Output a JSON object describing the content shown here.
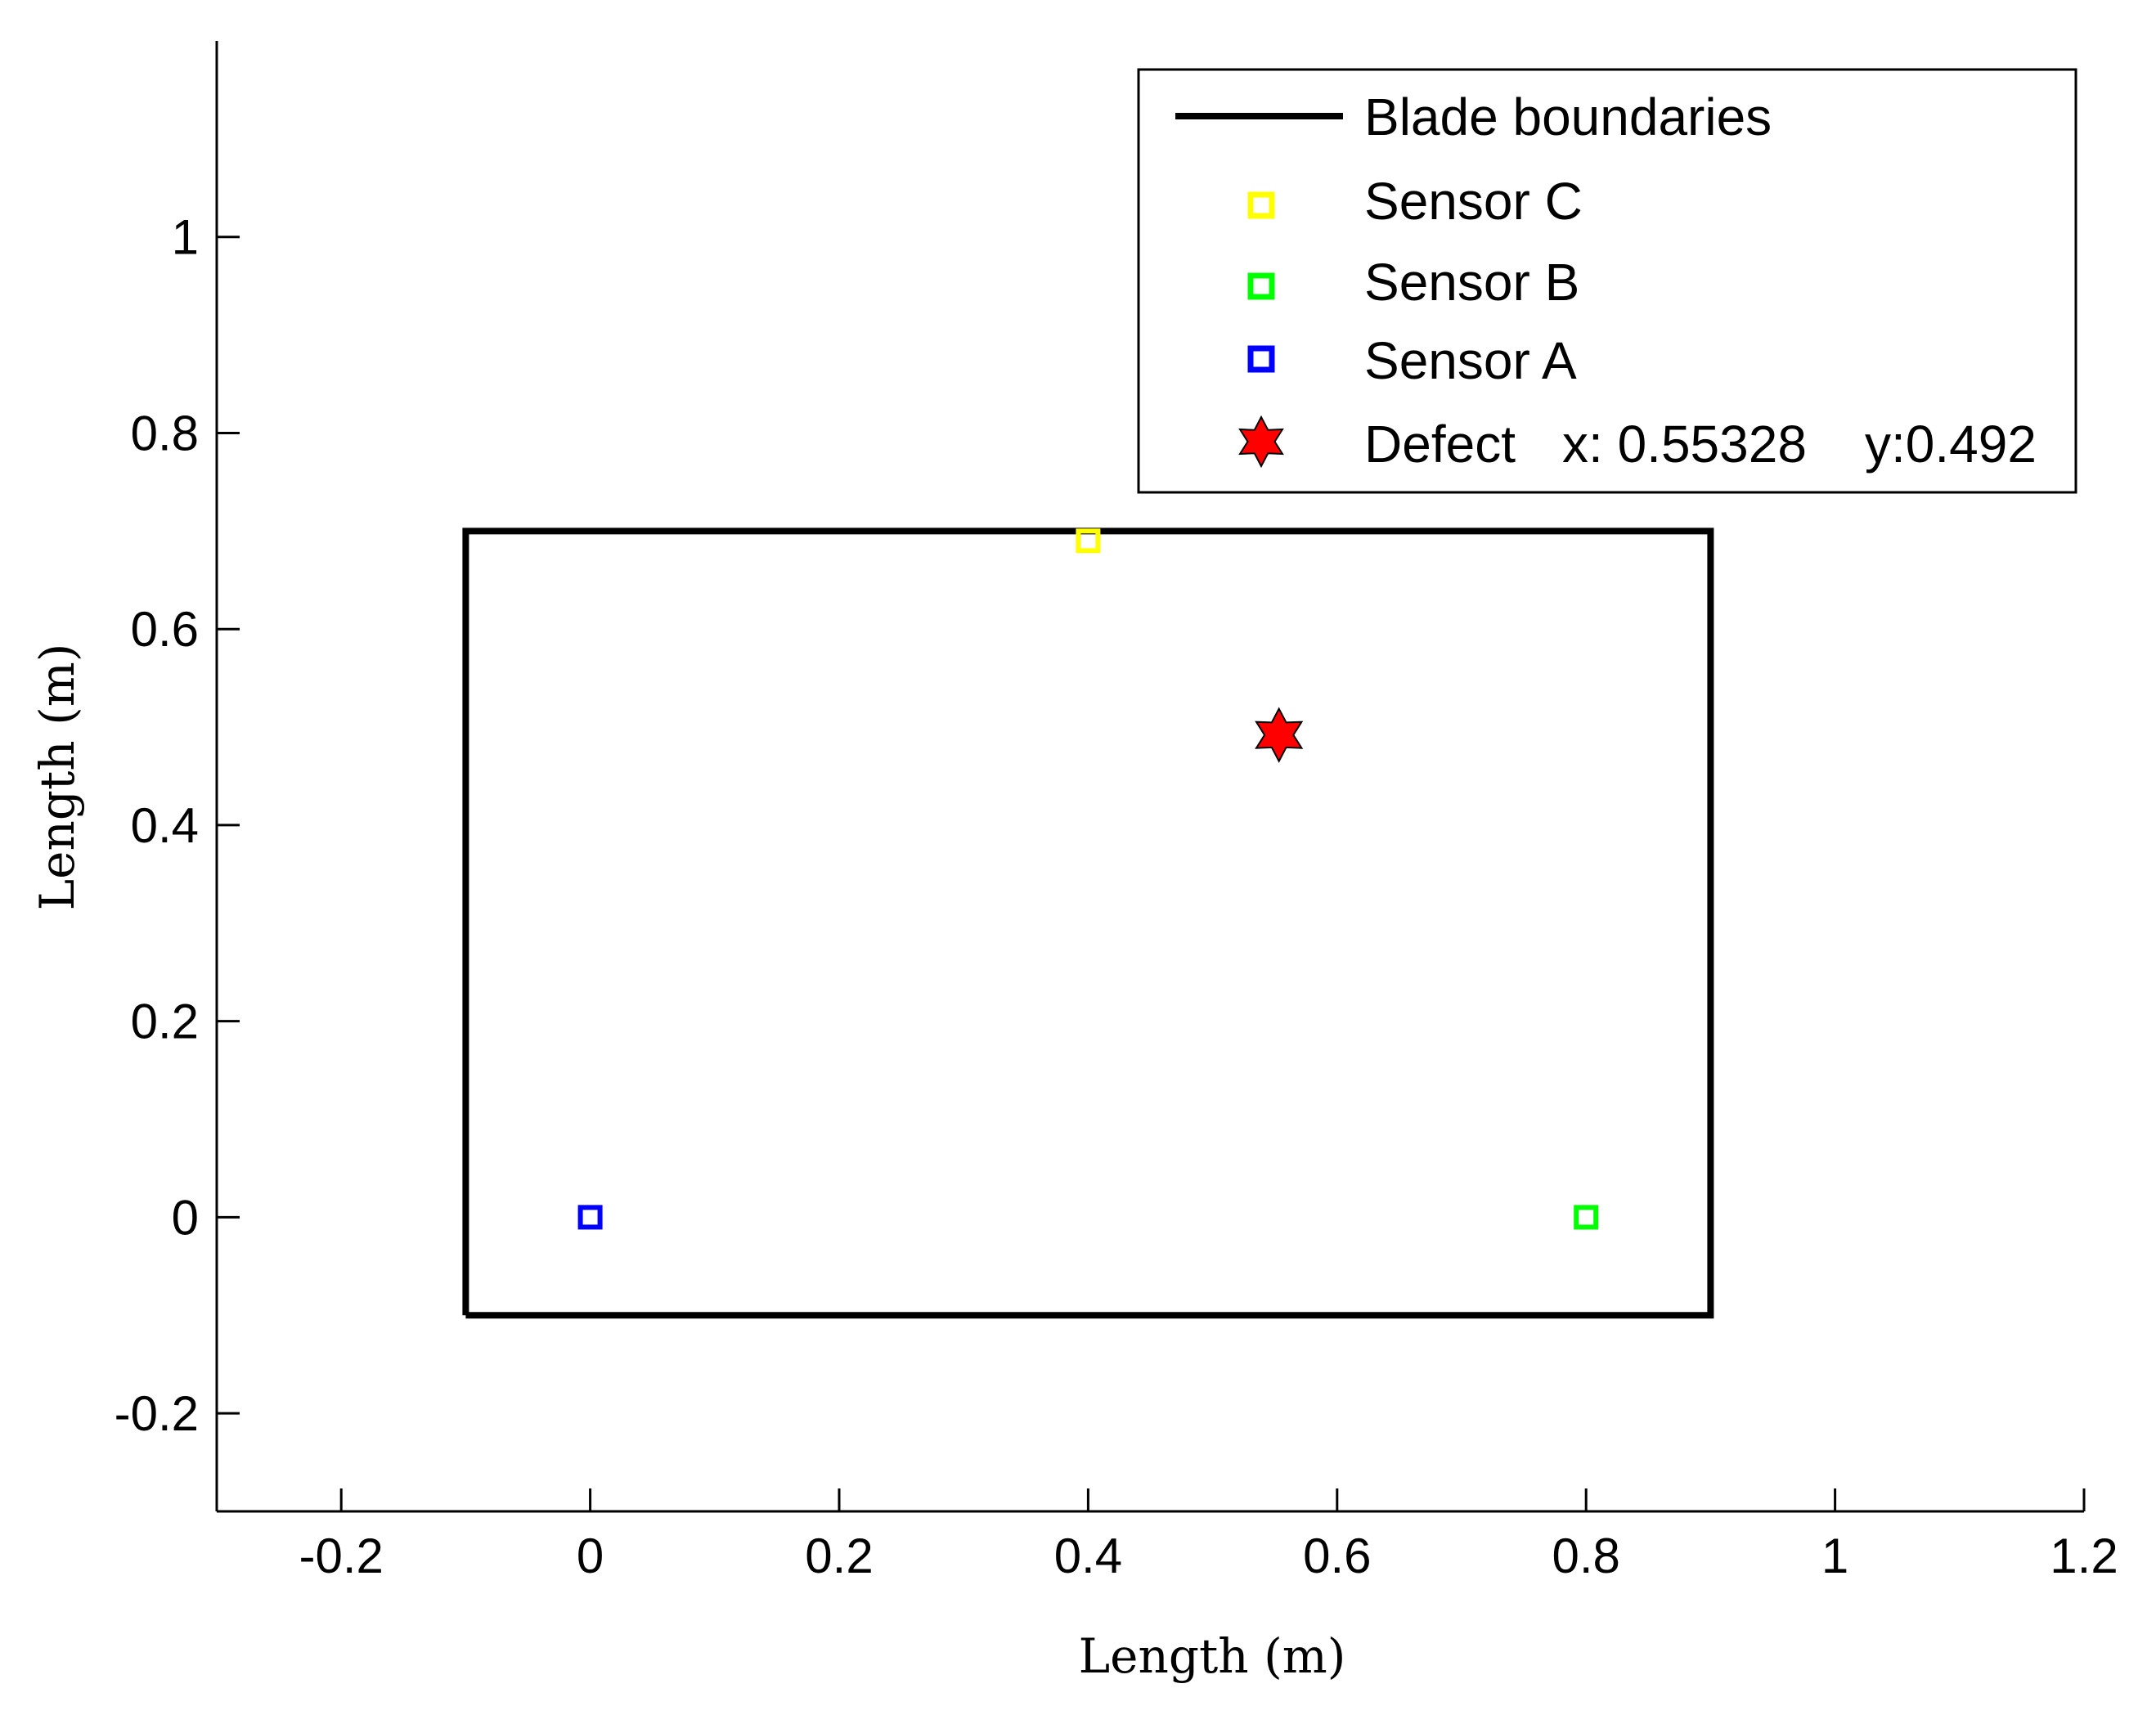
{
  "chart_data": {
    "type": "scatter",
    "title": "",
    "xlabel": "Length (m)",
    "ylabel": "Length (m)",
    "xlim": [
      -0.3,
      1.2
    ],
    "ylim": [
      -0.3,
      1.2
    ],
    "xticks": [
      -0.2,
      0,
      0.2,
      0.4,
      0.6,
      0.8,
      1,
      1.2
    ],
    "xtick_labels": [
      "-0.2",
      "0",
      "0.2",
      "0.4",
      "0.6",
      "0.8",
      "1",
      "1.2"
    ],
    "yticks": [
      -0.2,
      0,
      0.2,
      0.4,
      0.6,
      0.8,
      1
    ],
    "ytick_labels": [
      "-0.2",
      "0",
      "0.2",
      "0.4",
      "0.6",
      "0.8",
      "1"
    ],
    "grid": false,
    "legend_position": "top-right",
    "series": [
      {
        "name": "Blade boundaries",
        "kind": "line",
        "color": "#000000",
        "x": [
          -0.1,
          0.9,
          0.9,
          -0.1,
          -0.1
        ],
        "y": [
          -0.1,
          -0.1,
          0.7,
          0.7,
          -0.1
        ]
      },
      {
        "name": "Sensor C",
        "kind": "square",
        "color": "#ffff00",
        "x": [
          0.4
        ],
        "y": [
          0.69
        ]
      },
      {
        "name": "Sensor B",
        "kind": "square",
        "color": "#00ff00",
        "x": [
          0.8
        ],
        "y": [
          0
        ]
      },
      {
        "name": "Sensor A",
        "kind": "square",
        "color": "#0000ff",
        "x": [
          0
        ],
        "y": [
          0
        ]
      },
      {
        "name": "Defect",
        "kind": "star",
        "color": "#ff0000",
        "x": [
          0.55328
        ],
        "y": [
          0.492
        ]
      }
    ],
    "legend": {
      "entries": [
        "Blade boundaries",
        "Sensor C",
        "Sensor B",
        "Sensor A",
        "Defect"
      ],
      "defect_x_label": "x: 0.55328",
      "defect_y_label": "y:0.492"
    }
  }
}
